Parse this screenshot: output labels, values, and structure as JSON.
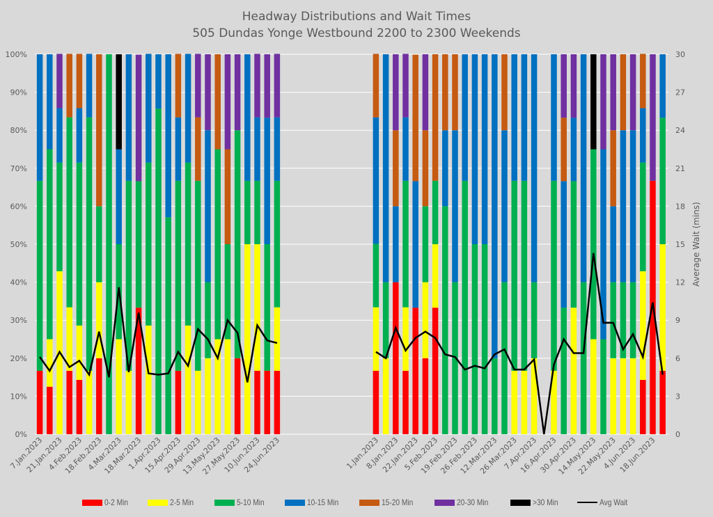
{
  "chart_data": {
    "type": "bar",
    "stacked": true,
    "percent_stacked": true,
    "title": "Headway Distributions and Wait Times",
    "subtitle": "505 Dundas  Yonge Westbound 2200 to 2300 Weekends",
    "ylabel": "",
    "y2label": "Average Wait (mins)",
    "ylim": [
      0,
      100
    ],
    "y2lim": [
      0,
      30
    ],
    "yticks": [
      "0%",
      "10%",
      "20%",
      "30%",
      "40%",
      "50%",
      "60%",
      "70%",
      "80%",
      "90%",
      "100%"
    ],
    "y2ticks": [
      "0",
      "3",
      "6",
      "9",
      "12",
      "15",
      "18",
      "21",
      "24",
      "27",
      "30"
    ],
    "grid": true,
    "legend_position": "bottom",
    "series_names": [
      "0-2 Min",
      "2-5 Min",
      "5-10 Min",
      "10-15 Min",
      "15-20 Min",
      "20-30 Min",
      ">30 Min"
    ],
    "series_colors": [
      "#ff0000",
      "#ffff00",
      "#00b050",
      "#0070c0",
      "#c55a11",
      "#7030a0",
      "#000000"
    ],
    "line_name": "Avg Wait",
    "line_color": "#000000",
    "panels": [
      {
        "name": "Saturdays",
        "tick_labels": [
          "7.Jan.2023",
          "21.Jan.2023",
          "4.Feb.2023",
          "18.Feb.2023",
          "4.Mar.2023",
          "18.Mar.2023",
          "1.Apr.2023",
          "15.Apr.2023",
          "29.Apr.2023",
          "13.May.2023",
          "27.May.2023",
          "10.Jun.2023",
          "24.Jun.2023"
        ],
        "tick_every": 2,
        "bars": [
          [
            16.7,
            0,
            50,
            33.3,
            0,
            0,
            0
          ],
          [
            12.5,
            12.5,
            50,
            25,
            0,
            0,
            0
          ],
          [
            0,
            42.9,
            28.6,
            14.3,
            0,
            14.3,
            0
          ],
          [
            16.7,
            16.7,
            50,
            0,
            16.7,
            0,
            0
          ],
          [
            14.3,
            14.3,
            42.9,
            14.3,
            14.3,
            0,
            0
          ],
          [
            0,
            16.7,
            66.7,
            16.7,
            0,
            0,
            0
          ],
          [
            20,
            20,
            20,
            0,
            40,
            0,
            0
          ],
          [
            0,
            0,
            100,
            0,
            0,
            0,
            0
          ],
          [
            0,
            25,
            25,
            25,
            0,
            0,
            25
          ],
          [
            0,
            16.7,
            50,
            33.3,
            0,
            0,
            0
          ],
          [
            33.3,
            0,
            33.3,
            0,
            0,
            33.3,
            0
          ],
          [
            0,
            28.6,
            42.9,
            28.6,
            0,
            0,
            0
          ],
          [
            0,
            0,
            85.7,
            14.3,
            0,
            0,
            0
          ],
          [
            0,
            0,
            57.1,
            42.9,
            0,
            0,
            0
          ],
          [
            16.7,
            0,
            50,
            16.7,
            16.7,
            0,
            0
          ],
          [
            0,
            28.6,
            42.9,
            28.6,
            0,
            0,
            0
          ],
          [
            0,
            16.7,
            50,
            0,
            16.7,
            16.7,
            0
          ],
          [
            0,
            20,
            20,
            40,
            0,
            20,
            0
          ],
          [
            0,
            25,
            50,
            0,
            25,
            0,
            0
          ],
          [
            0,
            25,
            25,
            0,
            25,
            25,
            0
          ],
          [
            20,
            0,
            60,
            0,
            0,
            20,
            0
          ],
          [
            0,
            50,
            16.7,
            33.3,
            0,
            0,
            0
          ],
          [
            16.7,
            33.3,
            16.7,
            16.7,
            0,
            16.7,
            0
          ],
          [
            16.7,
            0,
            33.3,
            33.3,
            0,
            16.7,
            0
          ],
          [
            16.7,
            16.7,
            33.3,
            16.7,
            0,
            16.7,
            0
          ]
        ],
        "avg_wait": [
          6.1,
          5.0,
          6.5,
          5.3,
          5.8,
          4.7,
          8.1,
          4.5,
          11.6,
          4.9,
          9.6,
          4.8,
          4.7,
          4.8,
          6.5,
          5.4,
          8.3,
          7.5,
          6.0,
          9.0,
          8.0,
          4.1,
          8.6,
          7.4,
          7.2
        ]
      },
      {
        "name": "Sundays and Holidays",
        "tick_labels": [
          "1.Jan.2023",
          "8.Jan.2023",
          "22.Jan.2023",
          "5.Feb.2023",
          "19.Feb.2023",
          "26.Feb.2023",
          "12.Mar.2023",
          "26.Mar.2023",
          "7.Apr.2023",
          "16.Apr.2023",
          "30.Apr.2023",
          "14.May.2023",
          "22.May.2023",
          "4.Jun.2023",
          "18.Jun.2023"
        ],
        "tick_every": 2,
        "bars": [
          [
            16.7,
            16.7,
            16.7,
            33.3,
            16.7,
            0,
            0
          ],
          [
            0,
            20,
            20,
            60,
            0,
            0,
            0
          ],
          [
            40,
            0,
            0,
            20,
            20,
            20,
            0
          ],
          [
            16.7,
            16.7,
            33.3,
            16.7,
            0,
            16.7,
            0
          ],
          [
            33.3,
            0,
            0,
            33.3,
            33.3,
            0,
            0
          ],
          [
            20,
            20,
            20,
            0,
            20,
            20,
            0
          ],
          [
            33.3,
            16.7,
            16.7,
            0,
            33.3,
            0,
            0
          ],
          [
            0,
            0,
            60,
            20,
            20,
            0,
            0
          ],
          [
            0,
            0,
            40,
            40,
            20,
            0,
            0
          ],
          [
            0,
            0,
            66.7,
            33.3,
            0,
            0,
            0
          ],
          [
            0,
            0,
            50,
            50,
            0,
            0,
            0
          ],
          [
            0,
            0,
            50,
            50,
            0,
            0,
            0
          ],
          [
            0,
            0,
            20,
            80,
            0,
            0,
            0
          ],
          [
            0,
            0,
            40,
            40,
            20,
            0,
            0
          ],
          [
            0,
            16.7,
            50,
            33.3,
            0,
            0,
            0
          ],
          [
            0,
            16.7,
            50,
            33.3,
            0,
            0,
            0
          ],
          [
            0,
            20,
            20,
            60,
            0,
            0,
            0
          ],
          [
            0,
            0,
            0,
            0,
            0,
            0,
            0
          ],
          [
            0,
            16.7,
            50,
            33.3,
            0,
            0,
            0
          ],
          [
            0,
            0,
            33.3,
            33.3,
            16.7,
            16.7,
            0
          ],
          [
            0,
            33.3,
            33.3,
            16.7,
            0,
            16.7,
            0
          ],
          [
            0,
            0,
            40,
            60,
            0,
            0,
            0
          ],
          [
            0,
            25,
            50,
            0,
            0,
            0,
            25
          ],
          [
            0,
            0,
            25,
            50,
            0,
            25,
            0
          ],
          [
            0,
            20,
            20,
            20,
            20,
            20,
            0
          ],
          [
            0,
            20,
            20,
            40,
            20,
            0,
            0
          ],
          [
            0,
            20,
            20,
            40,
            0,
            20,
            0
          ],
          [
            14.3,
            28.6,
            28.6,
            14.3,
            14.3,
            0,
            0
          ],
          [
            66.7,
            0,
            0,
            0,
            0,
            33.3,
            0
          ],
          [
            16.7,
            33.3,
            33.3,
            16.7,
            0,
            0,
            0
          ]
        ],
        "avg_wait": [
          6.5,
          6.0,
          8.4,
          6.6,
          7.6,
          8.1,
          7.6,
          6.3,
          6.1,
          5.1,
          5.4,
          5.2,
          6.3,
          6.7,
          5.1,
          5.1,
          5.9,
          0,
          5.5,
          7.5,
          6.4,
          6.4,
          14.3,
          8.8,
          8.8,
          6.7,
          7.9,
          6.1,
          10.4,
          4.7
        ]
      }
    ]
  }
}
